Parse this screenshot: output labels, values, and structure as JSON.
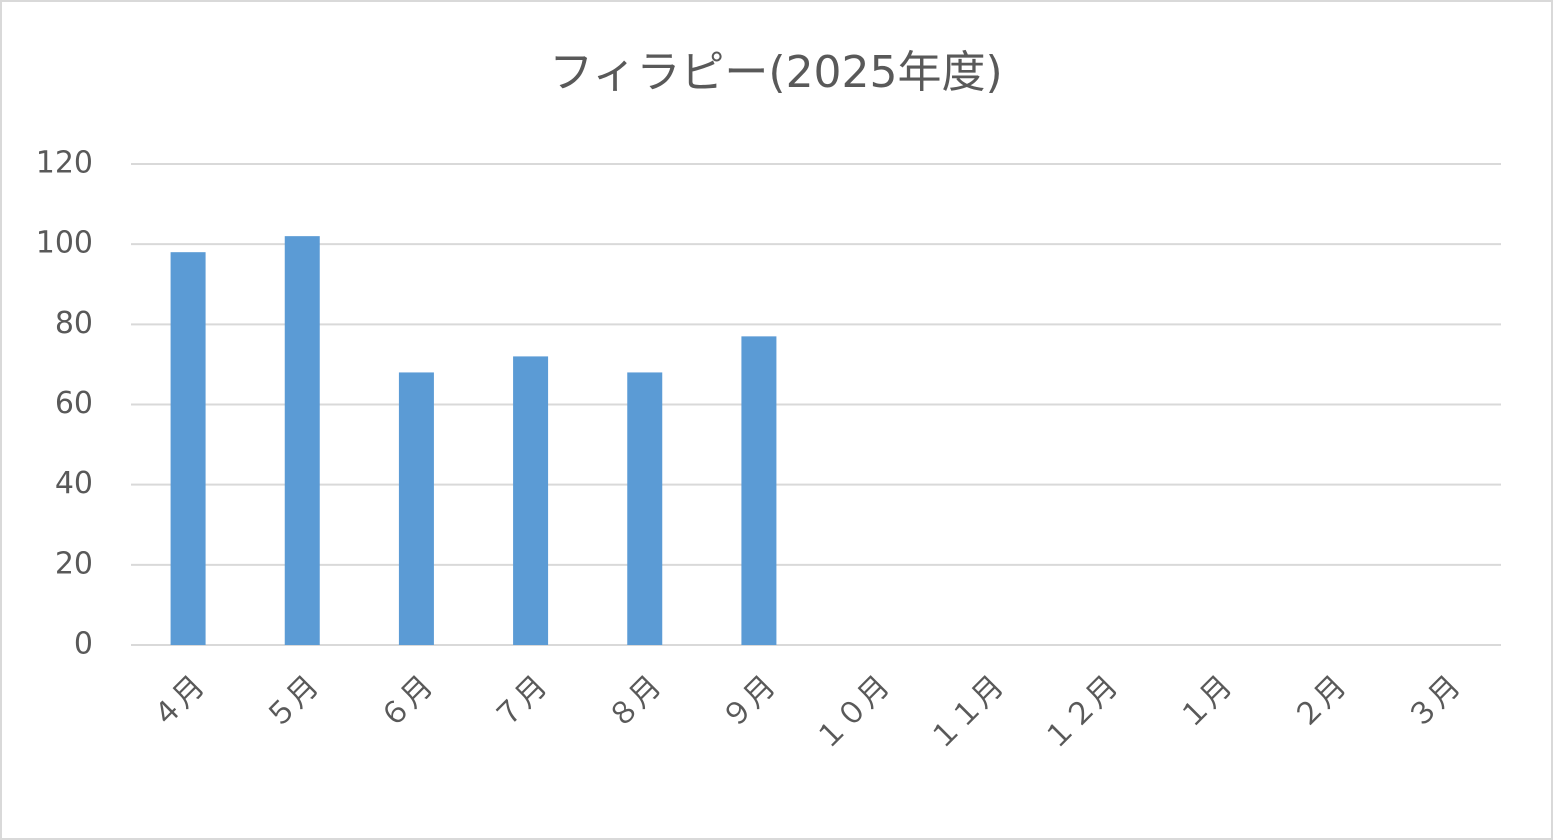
{
  "chart_data": {
    "type": "bar",
    "title": "フィラピー(2025年度)",
    "categories": [
      "４月",
      "５月",
      "６月",
      "７月",
      "８月",
      "９月",
      "１０月",
      "１１月",
      "１２月",
      "１月",
      "２月",
      "３月"
    ],
    "values": [
      98,
      102,
      68,
      72,
      68,
      77,
      null,
      null,
      null,
      null,
      null,
      null
    ],
    "color": "#5b9bd5",
    "ylim": [
      0,
      120
    ],
    "yticks": [
      0,
      20,
      40,
      60,
      80,
      100,
      120
    ],
    "grid": true
  }
}
